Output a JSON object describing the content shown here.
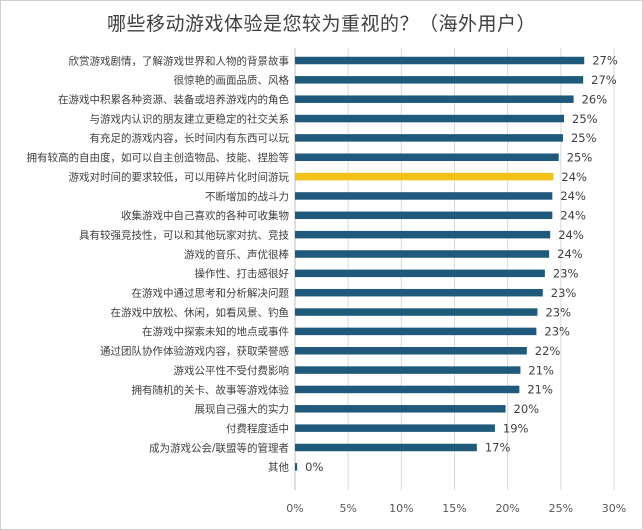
{
  "chart_data": {
    "type": "bar",
    "orientation": "horizontal",
    "title": "哪些移动游戏体验是您较为重视的？（海外用户）",
    "categories": [
      "欣赏游戏剧情，了解游戏世界和人物的背景故事",
      "很惊艳的画面品质、风格",
      "在游戏中积累各种资源、装备或培养游戏内的角色",
      "与游戏内认识的朋友建立更稳定的社交关系",
      "有充足的游戏内容，长时间内有东西可以玩",
      "拥有较高的自由度，如可以自主创造物品、技能、捏脸等",
      "游戏对时间的要求较低，可以用碎片化时间游玩",
      "不断增加的战斗力",
      "收集游戏中自己喜欢的各种可收集物",
      "具有较强竞技性，可以和其他玩家对抗、竞技",
      "游戏的音乐、声优很棒",
      "操作性、打击感很好",
      "在游戏中通过思考和分析解决问题",
      "在游戏中放松、休闲，如看风景、钓鱼",
      "在游戏中探索未知的地点或事件",
      "通过团队协作体验游戏内容，获取荣誉感",
      "游戏公平性不受付费影响",
      "拥有随机的关卡、故事等游戏体验",
      "展现自己强大的实力",
      "付费程度适中",
      "成为游戏公会/联盟等的管理者",
      "其他"
    ],
    "values": [
      27.2,
      27.1,
      26.2,
      25.3,
      25.2,
      24.8,
      24.3,
      24.2,
      24.2,
      24.0,
      23.9,
      23.5,
      23.3,
      22.8,
      22.7,
      21.8,
      21.2,
      21.1,
      19.8,
      18.8,
      17.1,
      0.2
    ],
    "value_labels": [
      "27%",
      "27%",
      "26%",
      "25%",
      "25%",
      "25%",
      "24%",
      "24%",
      "24%",
      "24%",
      "24%",
      "23%",
      "23%",
      "23%",
      "23%",
      "22%",
      "21%",
      "21%",
      "20%",
      "19%",
      "17%",
      "0%"
    ],
    "highlight_index": 6,
    "bar_color": "#1f5a7d",
    "highlight_color": "#f2c21b",
    "xlim": [
      0,
      30
    ],
    "xticks": [
      "0%",
      "5%",
      "10%",
      "15%",
      "20%",
      "25%",
      "30%"
    ],
    "xlabel": "",
    "ylabel": "",
    "grid": "vertical",
    "legend": "none"
  }
}
